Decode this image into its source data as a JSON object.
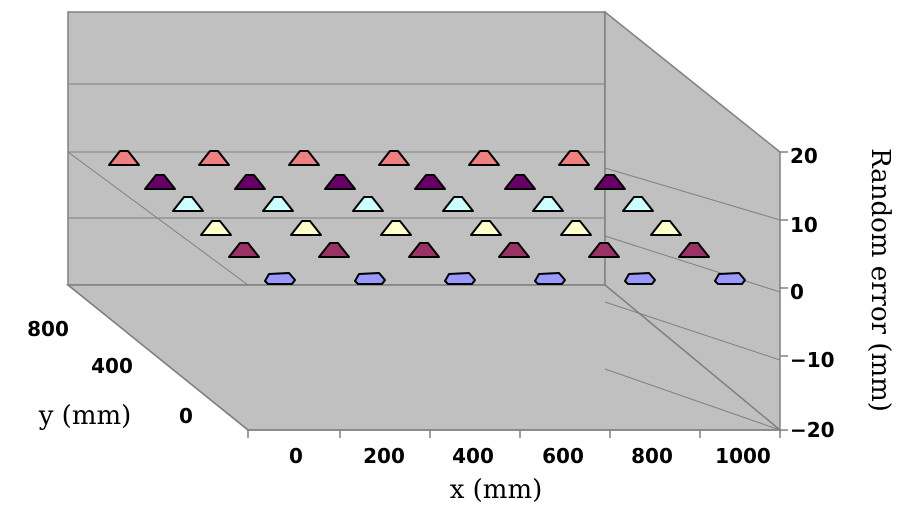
{
  "chart_data": {
    "type": "scatter",
    "title": "",
    "xlabel": "x (mm)",
    "ylabel": "y (mm)",
    "zlabel": "Random error (mm)",
    "x_ticks": [
      "0",
      "200",
      "400",
      "600",
      "800",
      "1000"
    ],
    "y_ticks": [
      "800",
      "400",
      "0"
    ],
    "z_ticks": [
      "20",
      "10",
      "0",
      "−10",
      "−20"
    ],
    "xlim": [
      0,
      1000
    ],
    "zlim": [
      -20,
      20
    ],
    "grid": true,
    "series": [
      {
        "color": "#f08080",
        "y": 1000,
        "x": [
          0,
          200,
          400,
          600,
          800,
          1000
        ],
        "z": [
          0,
          0,
          0,
          0,
          0,
          0
        ]
      },
      {
        "color": "#660066",
        "y": 800,
        "x": [
          0,
          200,
          400,
          600,
          800,
          1000
        ],
        "z": [
          0,
          0,
          0,
          0,
          0,
          0
        ]
      },
      {
        "color": "#ccffff",
        "y": 600,
        "x": [
          0,
          200,
          400,
          600,
          800,
          1000
        ],
        "z": [
          0,
          0,
          0,
          0,
          0,
          0
        ]
      },
      {
        "color": "#ffffcc",
        "y": 400,
        "x": [
          0,
          200,
          400,
          600,
          800,
          1000
        ],
        "z": [
          0,
          0,
          0,
          0,
          0,
          0
        ]
      },
      {
        "color": "#993366",
        "y": 200,
        "x": [
          0,
          200,
          400,
          600,
          800,
          1000
        ],
        "z": [
          0,
          0,
          0,
          0,
          0,
          0
        ]
      },
      {
        "color": "#9999ff",
        "y": 0,
        "x": [
          0,
          200,
          400,
          600,
          800,
          1000
        ],
        "z": [
          0,
          0,
          0,
          0,
          0,
          0
        ]
      }
    ]
  }
}
